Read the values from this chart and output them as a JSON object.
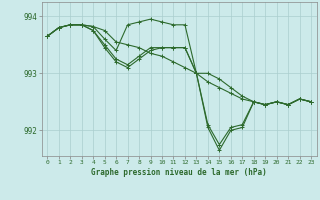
{
  "title": "Graphe pression niveau de la mer (hPa)",
  "bg_color": "#cceaea",
  "line_color": "#2d6a2d",
  "grid_color": "#aacece",
  "x_ticks": [
    0,
    1,
    2,
    3,
    4,
    5,
    6,
    7,
    8,
    9,
    10,
    11,
    12,
    13,
    14,
    15,
    16,
    17,
    18,
    19,
    20,
    21,
    22,
    23
  ],
  "ylim": [
    991.55,
    994.25
  ],
  "yticks": [
    992,
    993,
    994
  ],
  "lines": [
    [
      993.65,
      993.8,
      993.85,
      993.85,
      993.82,
      993.75,
      993.55,
      993.5,
      993.45,
      993.35,
      993.3,
      993.2,
      993.1,
      993.0,
      992.85,
      992.75,
      992.65,
      992.55,
      992.5,
      992.45,
      992.5,
      992.45,
      992.55,
      992.5
    ],
    [
      993.65,
      993.8,
      993.85,
      993.85,
      993.82,
      993.6,
      993.4,
      993.85,
      993.9,
      993.95,
      993.9,
      993.85,
      993.85,
      993.0,
      993.0,
      992.9,
      992.75,
      992.6,
      992.5,
      992.45,
      992.5,
      992.45,
      992.55,
      992.5
    ],
    [
      993.65,
      993.8,
      993.85,
      993.85,
      993.75,
      993.5,
      993.25,
      993.15,
      993.3,
      993.45,
      993.45,
      993.45,
      993.45,
      993.0,
      992.1,
      991.75,
      992.05,
      992.1,
      992.5,
      992.45,
      992.5,
      992.45,
      992.55,
      992.5
    ],
    [
      993.65,
      993.8,
      993.85,
      993.85,
      993.75,
      993.45,
      993.2,
      993.1,
      993.25,
      993.4,
      993.45,
      993.45,
      993.45,
      993.0,
      992.05,
      991.65,
      992.0,
      992.05,
      992.5,
      992.45,
      992.5,
      992.45,
      992.55,
      992.5
    ]
  ]
}
